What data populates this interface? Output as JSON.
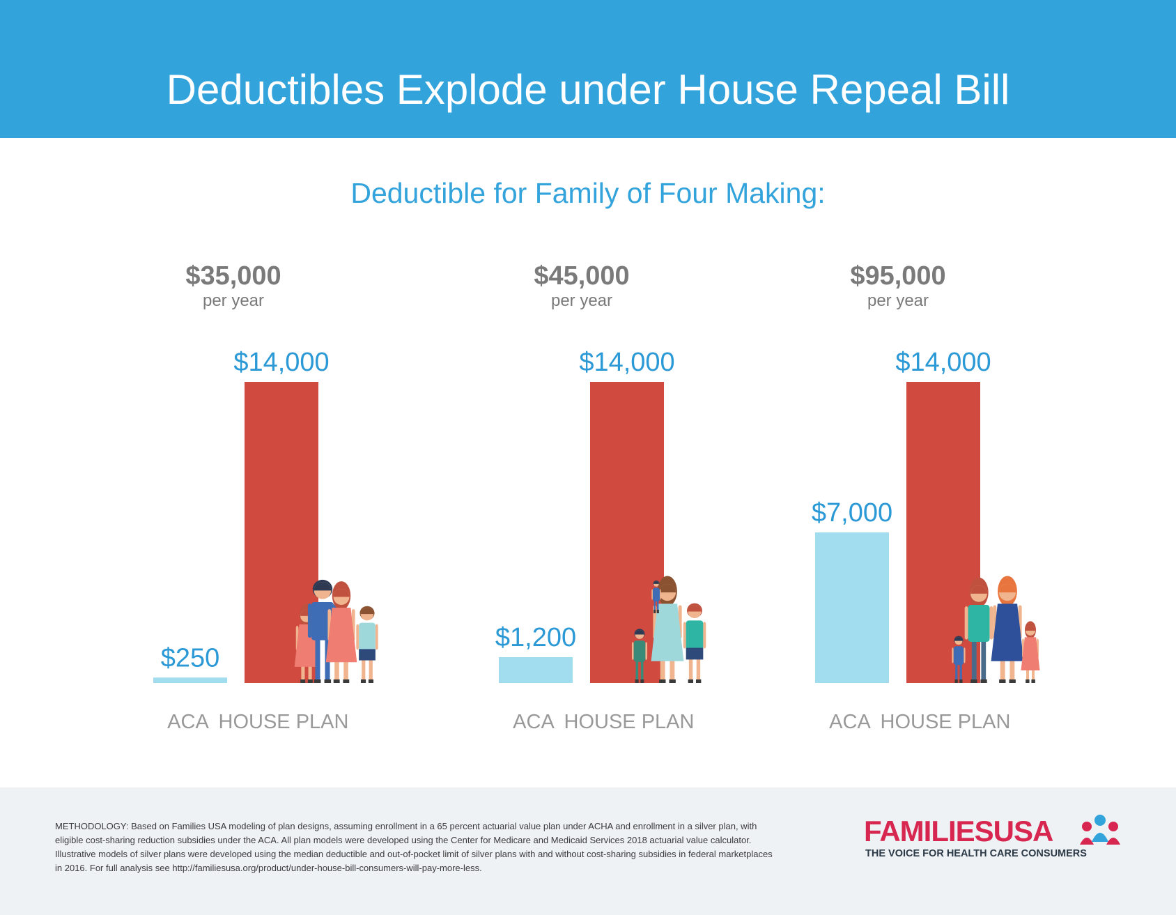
{
  "header": {
    "title": "Deductibles Explode under House Repeal Bill"
  },
  "colors": {
    "banner": "#33a3dc",
    "aca": "#a2dcef",
    "house": "#d04a40",
    "value_text": "#2a99d6",
    "income_text": "#7a7a7a",
    "category_text": "#999999",
    "logo_red": "#d7264f",
    "logo_blue": "#33a3dc"
  },
  "chart_data": {
    "type": "bar",
    "title": "Deductible for Family of Four Making:",
    "groups": [
      {
        "income": "$35,000",
        "period": "per year",
        "bars": [
          {
            "category": "ACA",
            "value": 250,
            "label": "$250"
          },
          {
            "category": "HOUSE PLAN",
            "value": 14000,
            "label": "$14,000"
          }
        ]
      },
      {
        "income": "$45,000",
        "period": "per year",
        "bars": [
          {
            "category": "ACA",
            "value": 1200,
            "label": "$1,200"
          },
          {
            "category": "HOUSE PLAN",
            "value": 14000,
            "label": "$14,000"
          }
        ]
      },
      {
        "income": "$95,000",
        "period": "per year",
        "bars": [
          {
            "category": "ACA",
            "value": 7000,
            "label": "$7,000"
          },
          {
            "category": "HOUSE PLAN",
            "value": 14000,
            "label": "$14,000"
          }
        ]
      }
    ],
    "series": [
      {
        "name": "ACA",
        "values": [
          250,
          1200,
          7000
        ]
      },
      {
        "name": "HOUSE PLAN",
        "values": [
          14000,
          14000,
          14000
        ]
      }
    ],
    "ylim": [
      0,
      14000
    ],
    "grid": false
  },
  "footer": {
    "methodology": "METHODOLOGY: Based on Families USA modeling of plan designs, assuming enrollment in a 65 percent actuarial value plan under ACHA and enrollment in a silver plan, with eligible cost-sharing reduction subsidies under the ACA. All plan models were developed using the Center for Medicare and Medicaid Services 2018 actuarial value calculator. Illustrative models of silver plans were developed using the median deductible and out-of-pocket limit of silver plans with and without cost-sharing subsidies in federal marketplaces in 2016. For full analysis see http://familiesusa.org/product/under-house-bill-consumers-will-pay-more-less.",
    "logo": {
      "name": "FAMILIESUSA",
      "tagline": "THE VOICE FOR HEALTH CARE CONSUMERS"
    }
  }
}
